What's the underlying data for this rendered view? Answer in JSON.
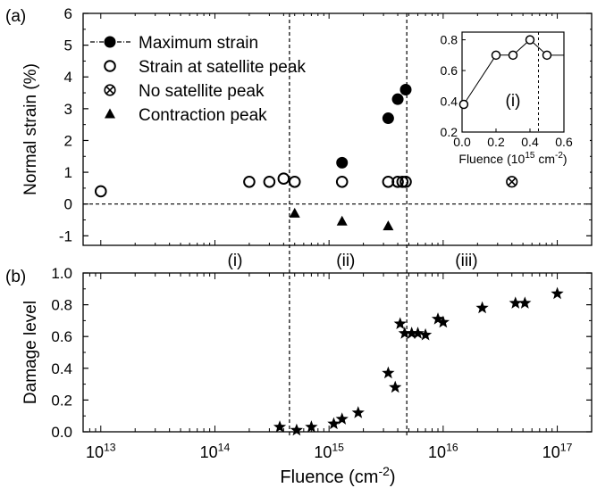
{
  "panel_labels": {
    "a": "(a)",
    "b": "(b)"
  },
  "colors": {
    "axis": "#000000",
    "marker": "#000000",
    "background": "#ffffff"
  },
  "chart_data": [
    {
      "type": "scatter",
      "panel": "(a)",
      "x_scale": "log",
      "xlim": [
        7000000000000.0,
        2e+17
      ],
      "ylim": [
        -1.3,
        6
      ],
      "ylabel": "Normal strain (%)",
      "yticks": [
        -1,
        0,
        1,
        2,
        3,
        4,
        5,
        6
      ],
      "ytick_labels": [
        "-1",
        "0",
        "1",
        "2",
        "3",
        "4",
        "5",
        "6"
      ],
      "reference_lines": {
        "horizontal_y": 0,
        "vertical_x": [
          450000000000000.0,
          4800000000000000.0
        ]
      },
      "regions": [
        {
          "label": "(i)",
          "x": 150000000000000.0
        },
        {
          "label": "(ii)",
          "x": 1400000000000000.0
        },
        {
          "label": "(iii)",
          "x": 1.6e+16
        }
      ],
      "legend_position": "top-left",
      "series": [
        {
          "name": "Maximum strain",
          "marker": "filled-circle",
          "x": [
            1300000000000000.0,
            3300000000000000.0,
            4000000000000000.0,
            4700000000000000.0
          ],
          "y": [
            1.3,
            2.7,
            3.3,
            3.6
          ]
        },
        {
          "name": "Strain at satellite peak",
          "marker": "open-circle",
          "x": [
            10000000000000.0,
            200000000000000.0,
            300000000000000.0,
            400000000000000.0,
            500000000000000.0,
            1300000000000000.0,
            3300000000000000.0,
            4000000000000000.0,
            4400000000000000.0,
            4700000000000000.0
          ],
          "y": [
            0.4,
            0.7,
            0.7,
            0.8,
            0.7,
            0.7,
            0.7,
            0.7,
            0.7,
            0.7
          ]
        },
        {
          "name": "No satellite peak",
          "marker": "crossed-circle",
          "x": [
            4e+16
          ],
          "y": [
            0.7
          ]
        },
        {
          "name": "Contraction peak",
          "marker": "filled-triangle",
          "x": [
            500000000000000.0,
            1300000000000000.0,
            3300000000000000.0
          ],
          "y": [
            -0.3,
            -0.55,
            -0.7
          ]
        }
      ],
      "inset": {
        "xlabel": "Fluence (10",
        "xlabel_exp": "15",
        "xlabel_unit": " cm",
        "xlabel_unit_exp": "-2",
        "xlabel_close": ")",
        "xlim": [
          0,
          0.6
        ],
        "ylim": [
          0.2,
          0.85
        ],
        "xticks": [
          "0.0",
          "0.2",
          "0.4",
          "0.6"
        ],
        "yticks": [
          "0.2",
          "0.4",
          "0.6",
          "0.8"
        ],
        "region_label": "(i)",
        "vertical_x": 0.45,
        "x": [
          0.01,
          0.2,
          0.3,
          0.4,
          0.5
        ],
        "y": [
          0.38,
          0.7,
          0.7,
          0.8,
          0.7
        ]
      }
    },
    {
      "type": "scatter",
      "panel": "(b)",
      "x_scale": "log",
      "xlim": [
        7000000000000.0,
        2e+17
      ],
      "ylim": [
        0,
        1.0
      ],
      "ylabel": "Damage level",
      "xlabel": "Fluence (cm",
      "xlabel_exp": "-2",
      "xlabel_close": ")",
      "yticks": [
        0,
        0.2,
        0.4,
        0.6,
        0.8,
        1.0
      ],
      "ytick_labels": [
        "0.0",
        "0.2",
        "0.4",
        "0.6",
        "0.8",
        "1.0"
      ],
      "xticks": [
        10000000000000.0,
        100000000000000.0,
        1000000000000000.0,
        1e+16,
        1e+17
      ],
      "xtick_base": "10",
      "xtick_exps": [
        "13",
        "14",
        "15",
        "16",
        "17"
      ],
      "reference_lines": {
        "vertical_x": [
          450000000000000.0,
          4800000000000000.0
        ]
      },
      "series": [
        {
          "marker": "star",
          "x": [
            370000000000000.0,
            520000000000000.0,
            700000000000000.0,
            1100000000000000.0,
            1300000000000000.0,
            1800000000000000.0,
            3300000000000000.0,
            3800000000000000.0,
            4200000000000000.0,
            4600000000000000.0,
            5300000000000000.0,
            6000000000000000.0,
            7000000000000000.0,
            9000000000000000.0,
            1e+16,
            2.2e+16,
            4.3e+16,
            5.2e+16,
            1e+17
          ],
          "y": [
            0.03,
            0.01,
            0.03,
            0.05,
            0.08,
            0.12,
            0.37,
            0.28,
            0.68,
            0.62,
            0.62,
            0.62,
            0.61,
            0.71,
            0.69,
            0.78,
            0.81,
            0.81,
            0.87
          ]
        }
      ]
    }
  ]
}
